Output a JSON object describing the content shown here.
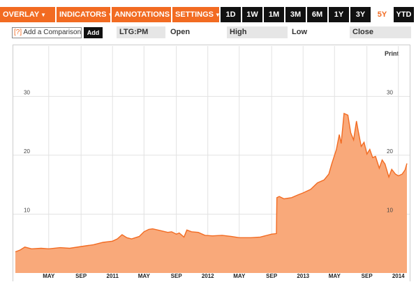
{
  "toolbar": {
    "menus": [
      {
        "label": "OVERLAY"
      },
      {
        "label": "INDICATORS"
      },
      {
        "label": "ANNOTATIONS"
      },
      {
        "label": "SETTINGS"
      }
    ],
    "ranges": [
      "1D",
      "1W",
      "1M",
      "3M",
      "6M",
      "1Y",
      "3Y",
      "5Y",
      "YTD"
    ],
    "active_range": "5Y",
    "menu_color": "#f26b22",
    "range_bg": "#111111"
  },
  "compare": {
    "icon": "[?]",
    "placeholder": "Add a Comparison",
    "add_label": "Add"
  },
  "quote": {
    "symbol": "LTG:PM",
    "open_label": "Open",
    "high_label": "High",
    "low_label": "Low",
    "close_label": "Close"
  },
  "print_label": "Print",
  "chart_data": {
    "type": "area",
    "color": "#f26b22",
    "fill": "#f9a97a",
    "ylim": [
      0,
      33
    ],
    "yticks_left": [
      10,
      20,
      30
    ],
    "yticks_right": [
      10,
      20,
      30
    ],
    "xticks": [
      {
        "label": "MAY",
        "t": 2010.33
      },
      {
        "label": "SEP",
        "t": 2010.67
      },
      {
        "label": "2011",
        "t": 2011.0
      },
      {
        "label": "MAY",
        "t": 2011.33
      },
      {
        "label": "SEP",
        "t": 2011.67
      },
      {
        "label": "2012",
        "t": 2012.0
      },
      {
        "label": "MAY",
        "t": 2012.33
      },
      {
        "label": "SEP",
        "t": 2012.67
      },
      {
        "label": "2013",
        "t": 2013.0
      },
      {
        "label": "MAY",
        "t": 2013.33
      },
      {
        "label": "SEP",
        "t": 2013.67
      },
      {
        "label": "2014",
        "t": 2014.0
      }
    ],
    "xlim": [
      2009.98,
      2014.09
    ],
    "points": [
      [
        2009.98,
        3.6
      ],
      [
        2010.03,
        3.9
      ],
      [
        2010.08,
        4.4
      ],
      [
        2010.15,
        4.1
      ],
      [
        2010.25,
        4.2
      ],
      [
        2010.33,
        4.1
      ],
      [
        2010.45,
        4.3
      ],
      [
        2010.55,
        4.2
      ],
      [
        2010.67,
        4.5
      ],
      [
        2010.8,
        4.8
      ],
      [
        2010.9,
        5.2
      ],
      [
        2011.0,
        5.4
      ],
      [
        2011.05,
        5.8
      ],
      [
        2011.1,
        6.5
      ],
      [
        2011.15,
        6.0
      ],
      [
        2011.2,
        5.8
      ],
      [
        2011.28,
        6.2
      ],
      [
        2011.33,
        7.0
      ],
      [
        2011.38,
        7.4
      ],
      [
        2011.42,
        7.5
      ],
      [
        2011.5,
        7.2
      ],
      [
        2011.58,
        6.9
      ],
      [
        2011.62,
        7.0
      ],
      [
        2011.67,
        6.6
      ],
      [
        2011.7,
        6.8
      ],
      [
        2011.75,
        6.1
      ],
      [
        2011.78,
        7.3
      ],
      [
        2011.83,
        7.0
      ],
      [
        2011.9,
        6.9
      ],
      [
        2011.97,
        6.4
      ],
      [
        2012.05,
        6.3
      ],
      [
        2012.15,
        6.4
      ],
      [
        2012.25,
        6.2
      ],
      [
        2012.33,
        6.0
      ],
      [
        2012.45,
        6.0
      ],
      [
        2012.55,
        6.1
      ],
      [
        2012.6,
        6.3
      ],
      [
        2012.67,
        6.6
      ],
      [
        2012.72,
        6.7
      ],
      [
        2012.725,
        12.8
      ],
      [
        2012.75,
        13.0
      ],
      [
        2012.8,
        12.6
      ],
      [
        2012.88,
        12.8
      ],
      [
        2012.95,
        13.3
      ],
      [
        2013.0,
        13.6
      ],
      [
        2013.08,
        14.2
      ],
      [
        2013.15,
        15.3
      ],
      [
        2013.22,
        15.8
      ],
      [
        2013.27,
        16.8
      ],
      [
        2013.3,
        18.5
      ],
      [
        2013.35,
        21.0
      ],
      [
        2013.38,
        23.5
      ],
      [
        2013.4,
        22.0
      ],
      [
        2013.43,
        27.1
      ],
      [
        2013.47,
        26.8
      ],
      [
        2013.5,
        23.8
      ],
      [
        2013.53,
        22.6
      ],
      [
        2013.56,
        25.8
      ],
      [
        2013.58,
        24.0
      ],
      [
        2013.61,
        21.5
      ],
      [
        2013.64,
        22.2
      ],
      [
        2013.67,
        20.2
      ],
      [
        2013.7,
        21.0
      ],
      [
        2013.73,
        19.6
      ],
      [
        2013.76,
        19.8
      ],
      [
        2013.8,
        17.8
      ],
      [
        2013.83,
        19.2
      ],
      [
        2013.86,
        18.5
      ],
      [
        2013.9,
        16.3
      ],
      [
        2013.93,
        17.6
      ],
      [
        2013.97,
        16.8
      ],
      [
        2014.0,
        16.5
      ],
      [
        2014.04,
        16.8
      ],
      [
        2014.07,
        17.5
      ],
      [
        2014.09,
        18.6
      ]
    ]
  }
}
